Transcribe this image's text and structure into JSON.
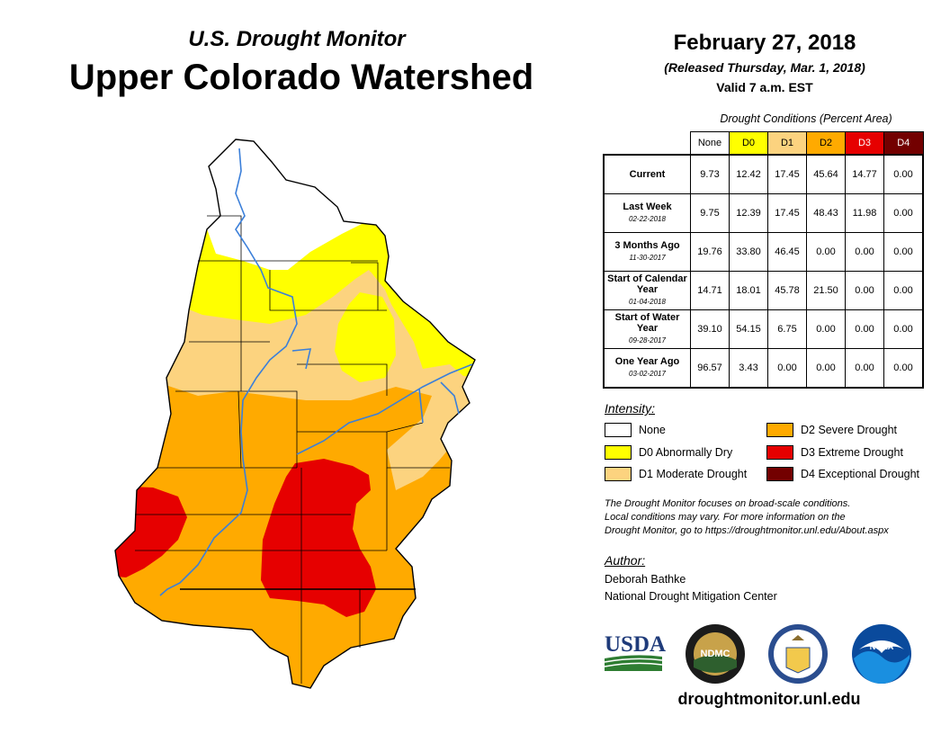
{
  "header": {
    "subtitle": "U.S. Drought Monitor",
    "title": "Upper Colorado Watershed",
    "date": "February 27, 2018",
    "released": "(Released Thursday, Mar. 1, 2018)",
    "valid": "Valid 7 a.m. EST"
  },
  "table": {
    "caption": "Drought Conditions (Percent Area)",
    "columns": [
      "None",
      "D0",
      "D1",
      "D2",
      "D3",
      "D4"
    ],
    "rows": [
      {
        "label": "Current",
        "date": "",
        "values": [
          "9.73",
          "12.42",
          "17.45",
          "45.64",
          "14.77",
          "0.00"
        ]
      },
      {
        "label": "Last Week",
        "date": "02-22-2018",
        "values": [
          "9.75",
          "12.39",
          "17.45",
          "48.43",
          "11.98",
          "0.00"
        ]
      },
      {
        "label": "3 Months Ago",
        "date": "11-30-2017",
        "values": [
          "19.76",
          "33.80",
          "46.45",
          "0.00",
          "0.00",
          "0.00"
        ]
      },
      {
        "label": "Start of Calendar Year",
        "date": "01-04-2018",
        "values": [
          "14.71",
          "18.01",
          "45.78",
          "21.50",
          "0.00",
          "0.00"
        ]
      },
      {
        "label": "Start of Water Year",
        "date": "09-28-2017",
        "values": [
          "39.10",
          "54.15",
          "6.75",
          "0.00",
          "0.00",
          "0.00"
        ]
      },
      {
        "label": "One Year Ago",
        "date": "03-02-2017",
        "values": [
          "96.57",
          "3.43",
          "0.00",
          "0.00",
          "0.00",
          "0.00"
        ]
      }
    ]
  },
  "legend": {
    "heading": "Intensity:",
    "items": [
      {
        "label": "None",
        "color": "#ffffff"
      },
      {
        "label": "D0 Abnormally Dry",
        "color": "#ffff00"
      },
      {
        "label": "D1 Moderate Drought",
        "color": "#fcd37f"
      },
      {
        "label": "D2 Severe Drought",
        "color": "#ffaa00"
      },
      {
        "label": "D3 Extreme Drought",
        "color": "#e60000"
      },
      {
        "label": "D4 Exceptional Drought",
        "color": "#730000"
      }
    ]
  },
  "note": {
    "line1": "The Drought Monitor focuses on broad-scale conditions.",
    "line2": "Local conditions may vary. For more information on the",
    "line3": "Drought Monitor, go to https://droughtmonitor.unl.edu/About.aspx"
  },
  "author": {
    "heading": "Author:",
    "name": "Deborah Bathke",
    "organization": "National Drought Mitigation Center"
  },
  "logos": {
    "usda": "USDA",
    "ndmc": "NDMC",
    "noaa": "NOAA"
  },
  "website": "droughtmonitor.unl.edu",
  "colors": {
    "none": "#ffffff",
    "d0": "#ffff00",
    "d1": "#fcd37f",
    "d2": "#ffaa00",
    "d3": "#e60000",
    "d4": "#730000",
    "river": "#3b7fd9"
  }
}
